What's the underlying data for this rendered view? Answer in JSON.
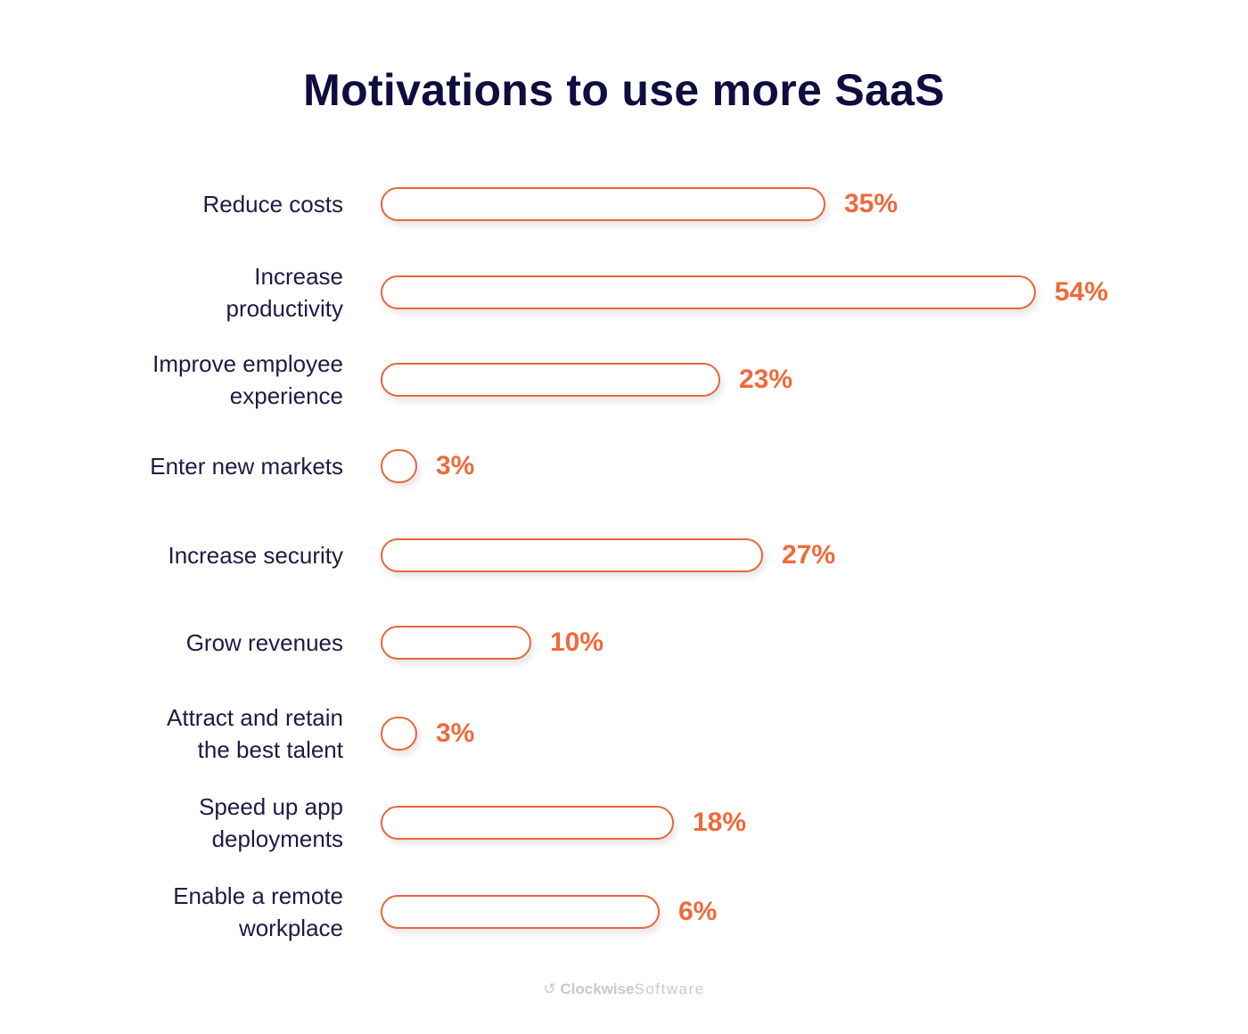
{
  "chart_data": {
    "type": "bar",
    "orientation": "horizontal",
    "title": "Motivations to use more SaaS",
    "categories": [
      "Reduce costs",
      "Increase productivity",
      "Improve employee experience",
      "Enter new markets",
      "Increase security",
      "Grow revenues",
      "Attract and retain the best talent",
      "Speed up app deployments",
      "Enable a remote workplace"
    ],
    "label_lines": [
      [
        "Reduce costs"
      ],
      [
        "Increase",
        "productivity"
      ],
      [
        "Improve employee",
        "experience"
      ],
      [
        "Enter new markets"
      ],
      [
        "Increase security"
      ],
      [
        "Grow revenues"
      ],
      [
        "Attract and retain",
        "the best talent"
      ],
      [
        "Speed up app",
        "deployments"
      ],
      [
        "Enable a remote",
        "workplace"
      ]
    ],
    "values": [
      35,
      54,
      23,
      3,
      27,
      10,
      3,
      18,
      6
    ],
    "value_labels": [
      "35%",
      "54%",
      "23%",
      "3%",
      "27%",
      "10%",
      "3%",
      "18%",
      "6%"
    ],
    "grid": false,
    "colors": {
      "bar_stroke": "#e8663d",
      "value_text": "#ef6a3a",
      "title": "#0f0c3f"
    }
  },
  "branding": {
    "logo_bold": "Clockwise",
    "logo_light": "Software"
  }
}
